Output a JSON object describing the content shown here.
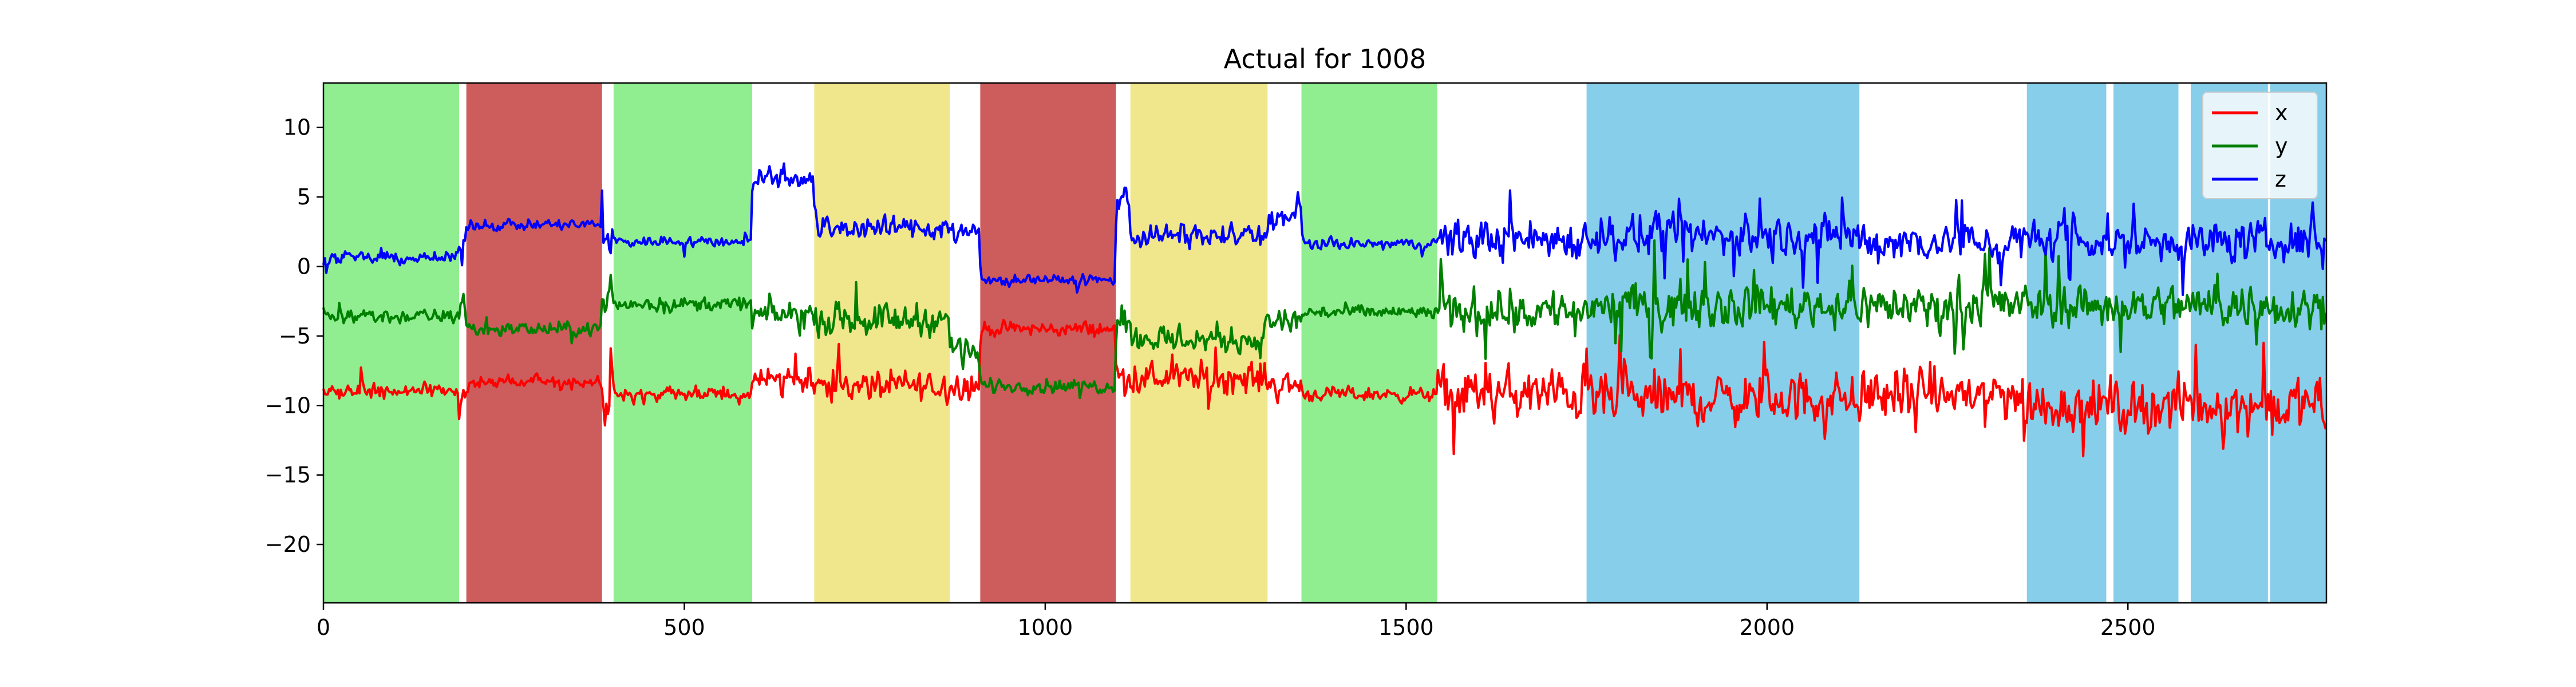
{
  "chart_data": {
    "type": "line",
    "title": "Actual for 1008",
    "xlabel": "",
    "ylabel": "",
    "xlim": [
      0,
      2775
    ],
    "ylim": [
      -24.2,
      13.2
    ],
    "xticks": [
      0,
      500,
      1000,
      1500,
      2000,
      2500
    ],
    "yticks": [
      10,
      5,
      0,
      -5,
      -10,
      -15,
      -20
    ],
    "grid": false,
    "legend": "top-right",
    "series": [
      {
        "name": "x",
        "color": "#ff0000",
        "base": -9.2,
        "noise_quiet": 0.5,
        "noise_active": 1.8
      },
      {
        "name": "y",
        "color": "#008000",
        "base": -3.2,
        "noise_quiet": 0.5,
        "noise_active": 1.5
      },
      {
        "name": "z",
        "color": "#0000ff",
        "base": 1.8,
        "noise_quiet": 0.4,
        "noise_active": 1.4
      }
    ],
    "segments": [
      {
        "x0": 0,
        "x1": 188,
        "color": "#90ee90",
        "x": -9.0,
        "y": -3.6,
        "z": 0.6
      },
      {
        "x0": 198,
        "x1": 386,
        "color": "#cd5c5c",
        "x": -8.3,
        "y": -4.5,
        "z": 3.0
      },
      {
        "x0": 402,
        "x1": 594,
        "color": "#90ee90",
        "x": -9.2,
        "y": -2.7,
        "z": 1.8
      },
      {
        "x0": 594,
        "x1": 680,
        "color": "",
        "x": -8.0,
        "y": -3.5,
        "z": 6.5
      },
      {
        "x0": 680,
        "x1": 868,
        "color": "#f0e68c",
        "x": -8.6,
        "y": -3.8,
        "z": 2.8
      },
      {
        "x0": 868,
        "x1": 910,
        "color": "",
        "x": -8.5,
        "y": -6.0,
        "z": 2.5
      },
      {
        "x0": 910,
        "x1": 1098,
        "color": "#cd5c5c",
        "x": -4.5,
        "y": -8.6,
        "z": -1.0
      },
      {
        "x0": 1098,
        "x1": 1118,
        "color": "",
        "x": -8.0,
        "y": -3.5,
        "z": 5.0
      },
      {
        "x0": 1118,
        "x1": 1308,
        "color": "#f0e68c",
        "x": -8.0,
        "y": -5.2,
        "z": 2.2
      },
      {
        "x0": 1308,
        "x1": 1355,
        "color": "",
        "x": -8.5,
        "y": -4.0,
        "z": 3.5
      },
      {
        "x0": 1355,
        "x1": 1543,
        "color": "#90ee90",
        "x": -9.2,
        "y": -3.3,
        "z": 1.6
      },
      {
        "x0": 1543,
        "x1": 1750,
        "color": "",
        "x": -9.2,
        "y": -3.2,
        "z": 2.0
      },
      {
        "x0": 1750,
        "x1": 2128,
        "color": "#87ceeb",
        "x": -9.5,
        "y": -2.8,
        "z": 2.2
      },
      {
        "x0": 2128,
        "x1": 2360,
        "color": "",
        "x": -9.2,
        "y": -2.8,
        "z": 1.8
      },
      {
        "x0": 2360,
        "x1": 2470,
        "color": "#87ceeb",
        "x": -10.0,
        "y": -2.8,
        "z": 1.8
      },
      {
        "x0": 2480,
        "x1": 2570,
        "color": "#87ceeb",
        "x": -10.0,
        "y": -2.8,
        "z": 1.8
      },
      {
        "x0": 2587,
        "x1": 2694,
        "color": "#87ceeb",
        "x": -10.0,
        "y": -2.8,
        "z": 1.8
      },
      {
        "x0": 2697,
        "x1": 2775,
        "color": "#87ceeb",
        "x": -10.0,
        "y": -2.8,
        "z": 1.8
      }
    ]
  }
}
